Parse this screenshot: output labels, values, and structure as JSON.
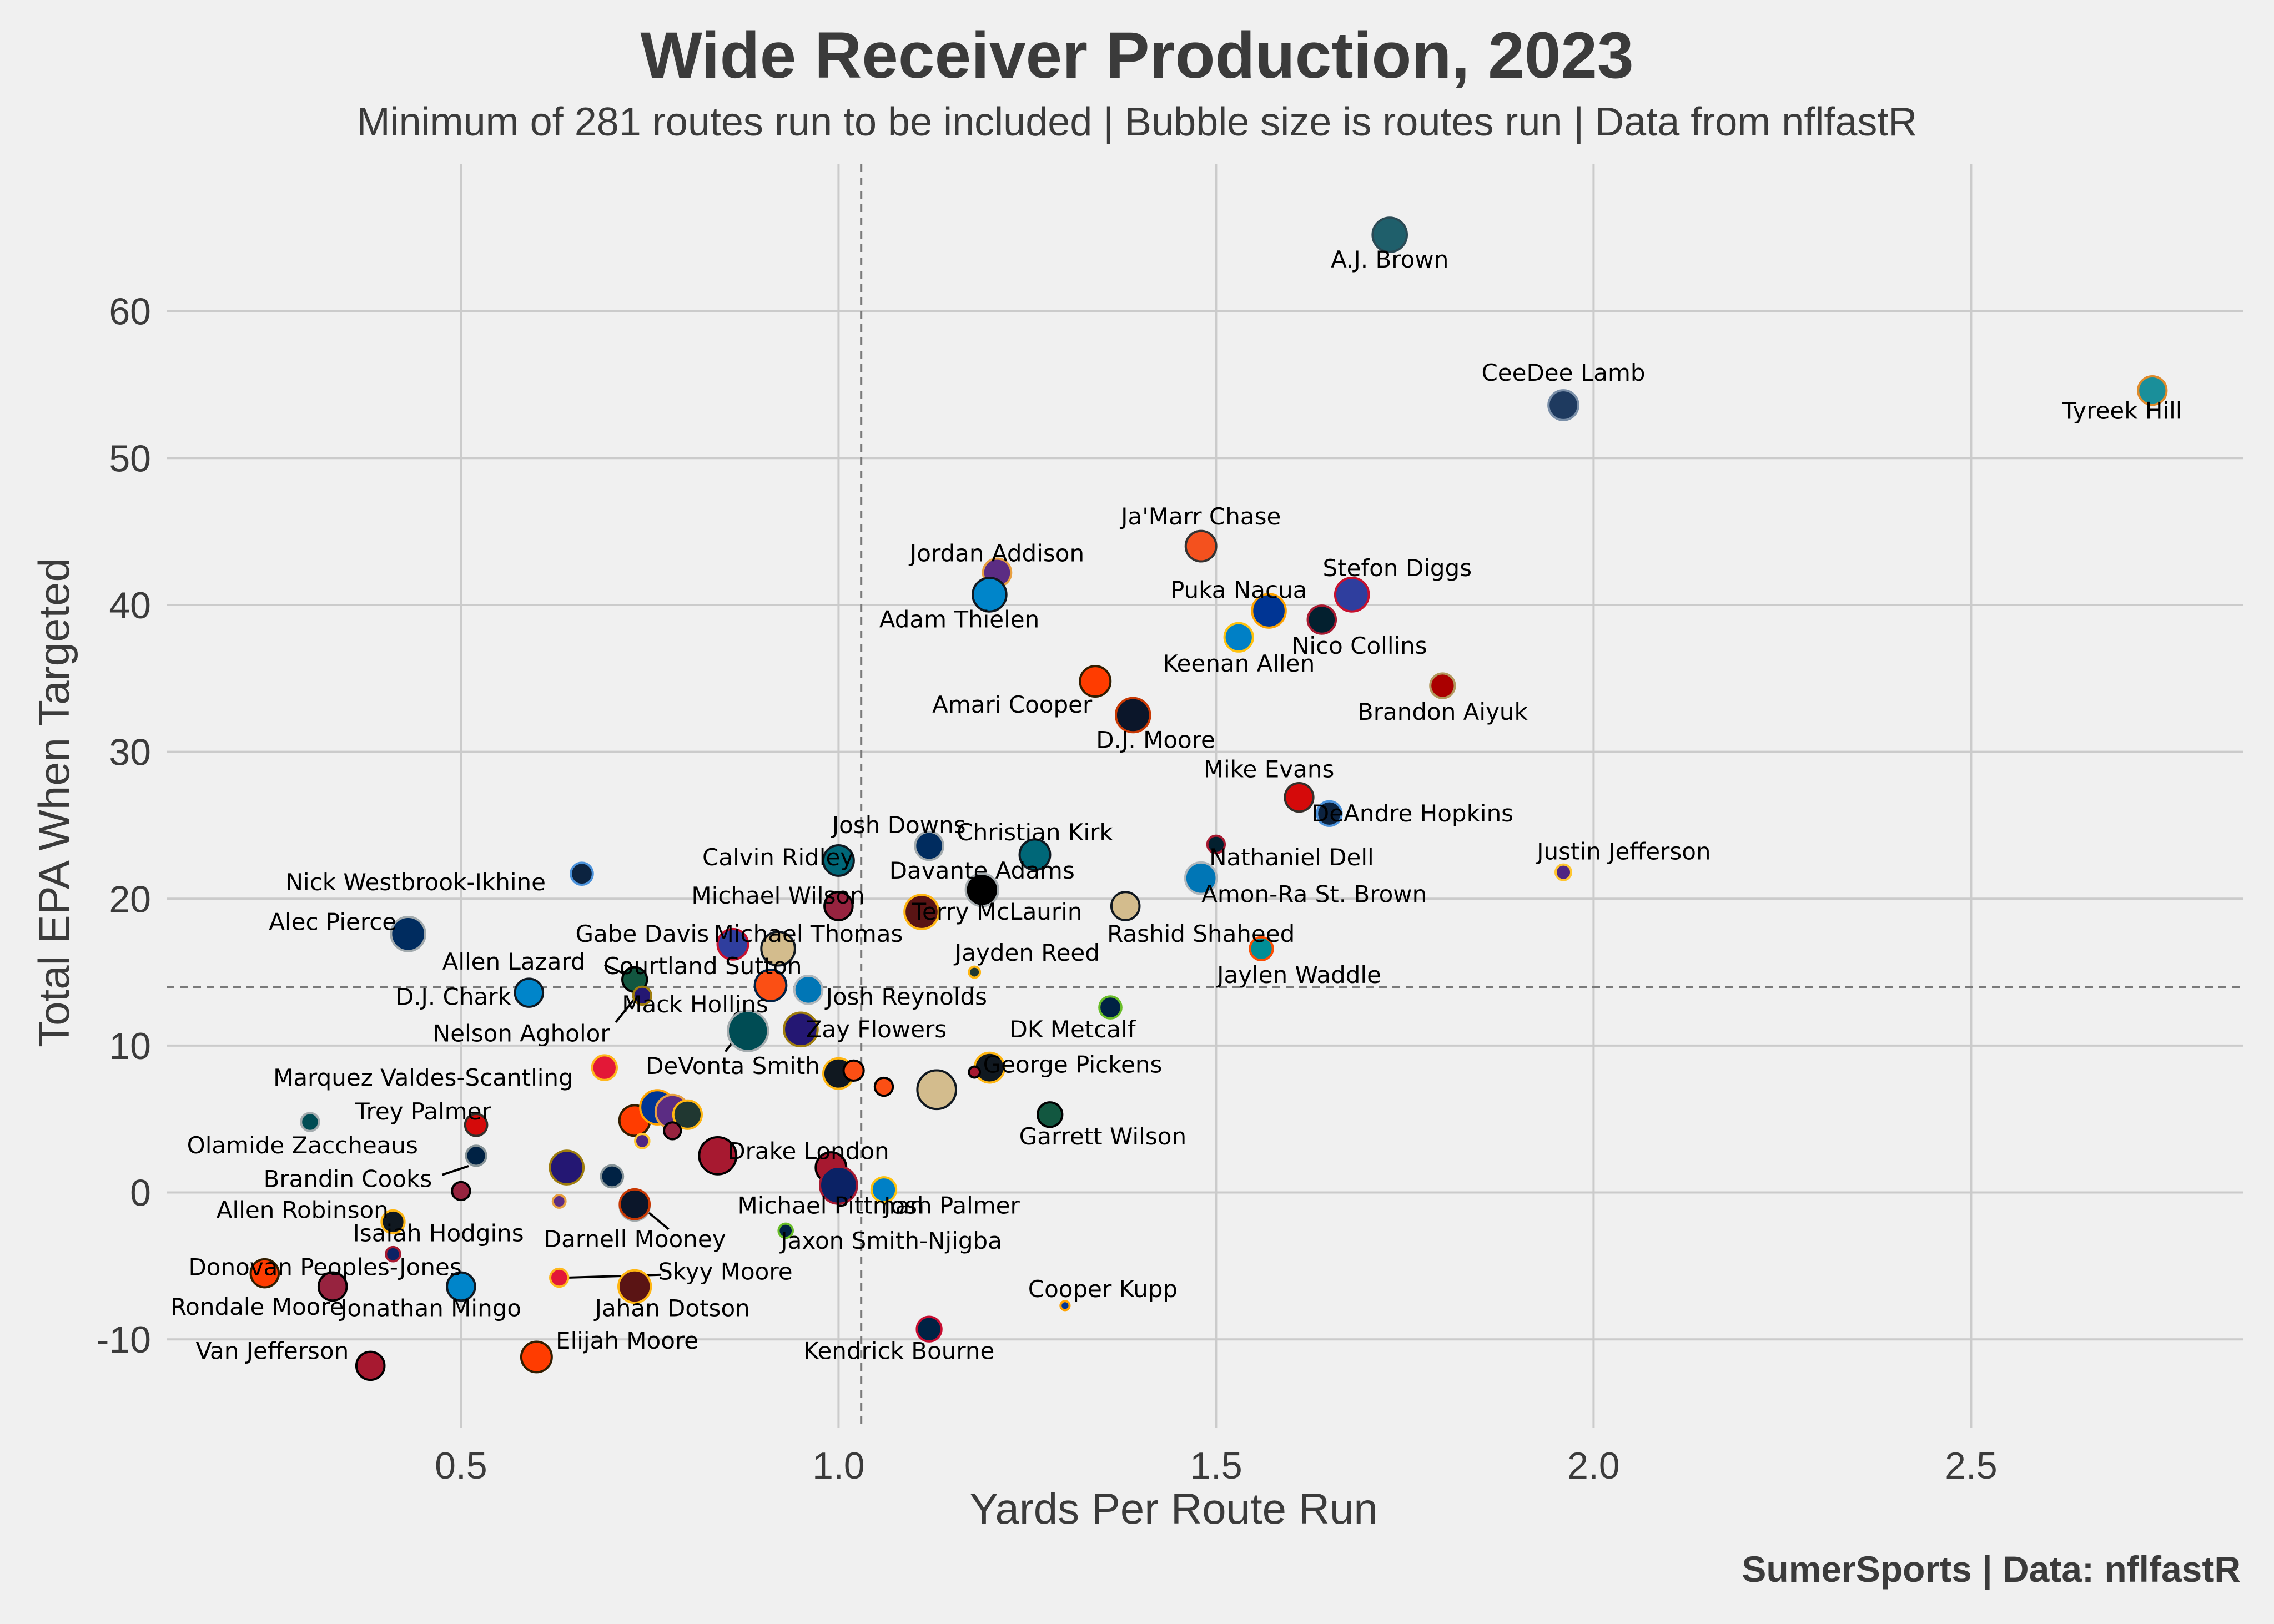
{
  "chart_data": {
    "type": "scatter",
    "title": "Wide Receiver Production, 2023",
    "subtitle": "Minimum of 281 routes run to be included | Bubble size is routes run | Data from nflfastR",
    "xlabel": "Yards Per Route Run",
    "ylabel": "Total EPA When Targeted",
    "credit": "SumerSports | Data: nflfastR",
    "xlim": [
      0.11,
      2.86
    ],
    "ylim": [
      -16,
      70
    ],
    "xticks": [
      0.5,
      1.0,
      1.5,
      2.0,
      2.5
    ],
    "xtick_labels": [
      "0.5",
      "1.0",
      "1.5",
      "2.0",
      "2.5"
    ],
    "yticks": [
      -10,
      0,
      10,
      20,
      30,
      40,
      50,
      60
    ],
    "ytick_labels": [
      "-10",
      "0",
      "10",
      "20",
      "30",
      "40",
      "50",
      "60"
    ],
    "reference_lines": {
      "x": 1.03,
      "y": 14.0
    },
    "grid": true,
    "size_note": "Bubble size is routes run",
    "points": [
      {
        "label": "A.J. Brown",
        "x": 1.73,
        "y": 65.2,
        "size": 580,
        "color": "#1f5f6b",
        "edge": "#2a4a55",
        "lx": 1.73,
        "ly": 63.5
      },
      {
        "label": "Tyreek Hill",
        "x": 2.74,
        "y": 54.6,
        "size": 400,
        "color": "#1a8f9a",
        "edge": "#e08a2a",
        "lx": 2.7,
        "ly": 53.2
      },
      {
        "label": "CeeDee Lamb",
        "x": 1.96,
        "y": 53.6,
        "size": 440,
        "color": "#1e3a5f",
        "edge": "#7a8fa8",
        "lx": 1.96,
        "ly": 55.8
      },
      {
        "label": "Ja'Marr Chase",
        "x": 1.48,
        "y": 44.0,
        "size": 460,
        "color": "#f4511e",
        "edge": "#333333",
        "lx": 1.48,
        "ly": 46.0
      },
      {
        "label": "Jordan Addison",
        "x": 1.21,
        "y": 42.2,
        "size": 390,
        "color": "#5b2c83",
        "edge": "#e8a040",
        "lx": 1.21,
        "ly": 43.5
      },
      {
        "label": "Adam Thielen",
        "x": 1.2,
        "y": 40.7,
        "size": 560,
        "color": "#0085ca",
        "edge": "#101820",
        "lx": 1.16,
        "ly": 39.0
      },
      {
        "label": "Stefon Diggs",
        "x": 1.68,
        "y": 40.7,
        "size": 560,
        "color": "#2f3e9e",
        "edge": "#c8102e",
        "lx": 1.74,
        "ly": 42.5
      },
      {
        "label": "Puka Nacua",
        "x": 1.57,
        "y": 39.6,
        "size": 560,
        "color": "#003594",
        "edge": "#ffa300",
        "lx": 1.53,
        "ly": 41.0
      },
      {
        "label": "Nico Collins",
        "x": 1.64,
        "y": 39.0,
        "size": 390,
        "color": "#03202f",
        "edge": "#a71930",
        "lx": 1.69,
        "ly": 37.2
      },
      {
        "label": "Keenan Allen",
        "x": 1.53,
        "y": 37.8,
        "size": 400,
        "color": "#0080c6",
        "edge": "#ffc20e",
        "lx": 1.53,
        "ly": 36.0
      },
      {
        "label": "Amari Cooper",
        "x": 1.34,
        "y": 34.8,
        "size": 460,
        "color": "#ff3c00",
        "edge": "#311d00",
        "lx": 1.23,
        "ly": 33.2
      },
      {
        "label": "Brandon Aiyuk",
        "x": 1.8,
        "y": 34.5,
        "size": 300,
        "color": "#aa0000",
        "edge": "#b3995d",
        "lx": 1.8,
        "ly": 32.7
      },
      {
        "label": "D.J. Moore",
        "x": 1.39,
        "y": 32.5,
        "size": 580,
        "color": "#0b162a",
        "edge": "#c83803",
        "lx": 1.42,
        "ly": 30.8
      },
      {
        "label": "Mike Evans",
        "x": 1.61,
        "y": 26.9,
        "size": 400,
        "color": "#d50a0a",
        "edge": "#34302b",
        "lx": 1.57,
        "ly": 28.8
      },
      {
        "label": "DeAndre Hopkins",
        "x": 1.65,
        "y": 25.8,
        "size": 300,
        "color": "#0c2340",
        "edge": "#4b92db",
        "lx": 1.76,
        "ly": 25.8
      },
      {
        "label": "Nathaniel Dell",
        "x": 1.5,
        "y": 23.7,
        "size": 150,
        "color": "#03202f",
        "edge": "#a71930",
        "lx": 1.6,
        "ly": 22.8
      },
      {
        "label": "Justin Jefferson",
        "x": 1.96,
        "y": 21.8,
        "size": 120,
        "color": "#4f2683",
        "edge": "#ffc62f",
        "lx": 2.04,
        "ly": 23.2
      },
      {
        "label": "Amon-Ra St. Brown",
        "x": 1.48,
        "y": 21.4,
        "size": 490,
        "color": "#0076b6",
        "edge": "#b0b7bc",
        "lx": 1.63,
        "ly": 20.3
      },
      {
        "label": "Rashid Shaheed",
        "x": 1.38,
        "y": 19.5,
        "size": 390,
        "color": "#d3bc8d",
        "edge": "#101820",
        "lx": 1.48,
        "ly": 17.6
      },
      {
        "label": "Jaylen Waddle",
        "x": 1.56,
        "y": 16.6,
        "size": 260,
        "color": "#008e97",
        "edge": "#fc4c02",
        "lx": 1.61,
        "ly": 14.8
      },
      {
        "label": "Christian Kirk",
        "x": 1.26,
        "y": 23.0,
        "size": 460,
        "color": "#006778",
        "edge": "#101820",
        "lx": 1.26,
        "ly": 24.5
      },
      {
        "label": "Josh Downs",
        "x": 1.12,
        "y": 23.6,
        "size": 390,
        "color": "#002c5f",
        "edge": "#a2aaad",
        "lx": 1.08,
        "ly": 25.0
      },
      {
        "label": "Calvin Ridley",
        "x": 1.0,
        "y": 22.6,
        "size": 460,
        "color": "#006778",
        "edge": "#101820",
        "lx": 0.92,
        "ly": 22.8
      },
      {
        "label": "Davante Adams",
        "x": 1.19,
        "y": 20.6,
        "size": 520,
        "color": "#000000",
        "edge": "#a5acaf",
        "lx": 1.19,
        "ly": 21.9
      },
      {
        "label": "Michael Wilson",
        "x": 1.0,
        "y": 19.5,
        "size": 390,
        "color": "#97233f",
        "edge": "#000000",
        "lx": 0.92,
        "ly": 20.2
      },
      {
        "label": "Terry McLaurin",
        "x": 1.11,
        "y": 19.1,
        "size": 580,
        "color": "#5a1414",
        "edge": "#ffb612",
        "lx": 1.21,
        "ly": 19.1
      },
      {
        "label": "Nick Westbrook-Ikhine",
        "x": 0.66,
        "y": 21.7,
        "size": 240,
        "color": "#0c2340",
        "edge": "#4b92db",
        "lx": 0.44,
        "ly": 21.1
      },
      {
        "label": "Alec Pierce",
        "x": 0.43,
        "y": 17.6,
        "size": 580,
        "color": "#002c5f",
        "edge": "#a2aaad",
        "lx": 0.33,
        "ly": 18.4
      },
      {
        "label": "Gabe Davis",
        "x": 0.86,
        "y": 16.9,
        "size": 460,
        "color": "#2f3e9e",
        "edge": "#c8102e",
        "lx": 0.74,
        "ly": 17.6
      },
      {
        "label": "Michael Thomas",
        "x": 0.92,
        "y": 16.6,
        "size": 560,
        "color": "#d3bc8d",
        "edge": "#101820",
        "lx": 0.96,
        "ly": 17.6
      },
      {
        "label": "Jayden Reed",
        "x": 1.18,
        "y": 15.0,
        "size": 60,
        "color": "#203731",
        "edge": "#ffb612",
        "lx": 1.25,
        "ly": 16.3
      },
      {
        "label": "Allen Lazard",
        "x": 0.73,
        "y": 14.5,
        "size": 300,
        "color": "#125740",
        "edge": "#000000",
        "lx": 0.57,
        "ly": 15.7
      },
      {
        "label": "Courtland Sutton",
        "x": 0.91,
        "y": 14.1,
        "size": 490,
        "color": "#fb4f14",
        "edge": "#002244",
        "lx": 0.82,
        "ly": 15.4
      },
      {
        "label": "D.J. Chark",
        "x": 0.59,
        "y": 13.6,
        "size": 390,
        "color": "#0085ca",
        "edge": "#101820",
        "lx": 0.49,
        "ly": 13.3
      },
      {
        "label": "Mack Hollins",
        "x": 0.87,
        "y": 11.8,
        "size": 100,
        "color": "#a71930",
        "edge": "#000000",
        "lx": 0.81,
        "ly": 12.8
      },
      {
        "label": "Josh Reynolds",
        "x": 0.96,
        "y": 13.8,
        "size": 390,
        "color": "#0076b6",
        "edge": "#b0b7bc",
        "lx": 1.09,
        "ly": 13.3
      },
      {
        "label": "Nelson Agholor",
        "x": 0.74,
        "y": 13.4,
        "size": 160,
        "color": "#241773",
        "edge": "#9e7c0c",
        "lx": 0.58,
        "ly": 10.8
      },
      {
        "label": "Zay Flowers",
        "x": 0.95,
        "y": 11.1,
        "size": 560,
        "color": "#241773",
        "edge": "#9e7c0c",
        "lx": 1.05,
        "ly": 11.1
      },
      {
        "label": "DeVonta Smith",
        "x": 0.88,
        "y": 11.0,
        "size": 800,
        "color": "#004c54",
        "edge": "#a5acaf",
        "lx": 0.86,
        "ly": 8.6
      },
      {
        "label": "DK Metcalf",
        "x": 1.36,
        "y": 12.6,
        "size": 240,
        "color": "#002244",
        "edge": "#69be28",
        "lx": 1.31,
        "ly": 11.1
      },
      {
        "label": "George Pickens",
        "x": 1.2,
        "y": 8.5,
        "size": 440,
        "color": "#101820",
        "edge": "#ffb612",
        "lx": 1.31,
        "ly": 8.7
      },
      {
        "label": "Marquez Valdes-Scantling",
        "x": 0.69,
        "y": 8.5,
        "size": 300,
        "color": "#e31837",
        "edge": "#ffb81c",
        "lx": 0.45,
        "ly": 7.8
      },
      {
        "label": null,
        "x": 1.0,
        "y": 8.1,
        "size": 460,
        "color": "#101820",
        "edge": "#ffb612"
      },
      {
        "label": null,
        "x": 1.02,
        "y": 8.3,
        "size": 200,
        "color": "#fb4f14",
        "edge": "#000000"
      },
      {
        "label": null,
        "x": 1.06,
        "y": 7.2,
        "size": 160,
        "color": "#fb4f14",
        "edge": "#000000"
      },
      {
        "label": null,
        "x": 1.13,
        "y": 7.0,
        "size": 740,
        "color": "#d3bc8d",
        "edge": "#101820"
      },
      {
        "label": null,
        "x": 1.18,
        "y": 8.2,
        "size": 60,
        "color": "#a71930",
        "edge": "#000000"
      },
      {
        "label": "Olamide Zaccheaus",
        "x": 0.3,
        "y": 4.8,
        "size": 160,
        "color": "#004c54",
        "edge": "#a5acaf",
        "lx": 0.29,
        "ly": 3.2
      },
      {
        "label": "Trey Palmer",
        "x": 0.52,
        "y": 4.6,
        "size": 240,
        "color": "#d50a0a",
        "edge": "#34302b",
        "lx": 0.45,
        "ly": 5.5
      },
      {
        "label": null,
        "x": 0.73,
        "y": 4.9,
        "size": 460,
        "color": "#ff3c00",
        "edge": "#311d00"
      },
      {
        "label": null,
        "x": 0.76,
        "y": 5.8,
        "size": 580,
        "color": "#003594",
        "edge": "#ffa300"
      },
      {
        "label": null,
        "x": 0.78,
        "y": 5.5,
        "size": 560,
        "color": "#5b2c83",
        "edge": "#e8a040"
      },
      {
        "label": null,
        "x": 0.8,
        "y": 5.3,
        "size": 400,
        "color": "#203731",
        "edge": "#ffb612"
      },
      {
        "label": null,
        "x": 0.74,
        "y": 3.5,
        "size": 100,
        "color": "#4f2683",
        "edge": "#ffc62f"
      },
      {
        "label": null,
        "x": 0.78,
        "y": 4.2,
        "size": 140,
        "color": "#97233f",
        "edge": "#000000"
      },
      {
        "label": "Garrett Wilson",
        "x": 1.28,
        "y": 5.3,
        "size": 300,
        "color": "#125740",
        "edge": "#000000",
        "lx": 1.35,
        "ly": 3.8
      },
      {
        "label": "Drake London",
        "x": 0.84,
        "y": 2.5,
        "size": 680,
        "color": "#a71930",
        "edge": "#000000",
        "lx": 0.96,
        "ly": 2.8
      },
      {
        "label": "Brandin Cooks",
        "x": 0.52,
        "y": 2.5,
        "size": 200,
        "color": "#002244",
        "edge": "#869397",
        "lx": 0.35,
        "ly": 0.9
      },
      {
        "label": null,
        "x": 0.64,
        "y": 1.7,
        "size": 560,
        "color": "#241773",
        "edge": "#9e7c0c"
      },
      {
        "label": null,
        "x": 0.7,
        "y": 1.1,
        "size": 240,
        "color": "#002244",
        "edge": "#869397"
      },
      {
        "label": null,
        "x": 0.99,
        "y": 1.7,
        "size": 460,
        "color": "#a71930",
        "edge": "#000000"
      },
      {
        "label": null,
        "x": 1.0,
        "y": 0.5,
        "size": 680,
        "color": "#0b2265",
        "edge": "#a71930"
      },
      {
        "label": "Josh Palmer",
        "x": 1.06,
        "y": 0.2,
        "size": 300,
        "color": "#0080c6",
        "edge": "#ffc20e",
        "lx": 1.15,
        "ly": -0.9
      },
      {
        "label": null,
        "x": 0.5,
        "y": 0.1,
        "size": 160,
        "color": "#97233f",
        "edge": "#000000"
      },
      {
        "label": null,
        "x": 0.63,
        "y": -0.6,
        "size": 80,
        "color": "#5b2c83",
        "edge": "#e8a040"
      },
      {
        "label": "Michael Pittman",
        "x": 0.73,
        "y": -0.9,
        "size": 440,
        "color": "#002c5f",
        "edge": "#a2aaad",
        "lx": 0.99,
        "ly": -0.9
      },
      {
        "label": "Allen Robinson",
        "x": 0.41,
        "y": -2.0,
        "size": 260,
        "color": "#101820",
        "edge": "#ffb612",
        "lx": 0.29,
        "ly": -1.2
      },
      {
        "label": "Isaiah Hodgins",
        "x": 0.41,
        "y": -4.2,
        "size": 100,
        "color": "#0b2265",
        "edge": "#a71930",
        "lx": 0.47,
        "ly": -2.8
      },
      {
        "label": "Darnell Mooney",
        "x": 0.73,
        "y": -0.8,
        "size": 440,
        "color": "#0b162a",
        "edge": "#c83803",
        "lx": 0.73,
        "ly": -3.2
      },
      {
        "label": "Jaxon Smith-Njigba",
        "x": 0.93,
        "y": -2.6,
        "size": 100,
        "color": "#002244",
        "edge": "#69be28",
        "lx": 1.07,
        "ly": -3.3
      },
      {
        "label": "Donovan Peoples-Jones",
        "x": 0.24,
        "y": -5.5,
        "size": 390,
        "color": "#ff3c00",
        "edge": "#311d00",
        "lx": 0.32,
        "ly": -5.1
      },
      {
        "label": "Rondale Moore",
        "x": 0.33,
        "y": -6.4,
        "size": 390,
        "color": "#97233f",
        "edge": "#000000",
        "lx": 0.23,
        "ly": -7.8
      },
      {
        "label": "Jonathan Mingo",
        "x": 0.5,
        "y": -6.4,
        "size": 390,
        "color": "#0085ca",
        "edge": "#101820",
        "lx": 0.46,
        "ly": -7.9
      },
      {
        "label": "Skyy Moore",
        "x": 0.63,
        "y": -5.8,
        "size": 160,
        "color": "#e31837",
        "edge": "#ffb81c",
        "lx": 0.85,
        "ly": -5.4
      },
      {
        "label": "Jahan Dotson",
        "x": 0.73,
        "y": -6.4,
        "size": 520,
        "color": "#5a1414",
        "edge": "#ffb612",
        "lx": 0.78,
        "ly": -7.9
      },
      {
        "label": "Cooper Kupp",
        "x": 1.3,
        "y": -7.7,
        "size": 40,
        "color": "#003594",
        "edge": "#ffa300",
        "lx": 1.35,
        "ly": -6.6
      },
      {
        "label": "Kendrick Bourne",
        "x": 1.12,
        "y": -9.3,
        "size": 300,
        "color": "#002244",
        "edge": "#c60c30",
        "lx": 1.08,
        "ly": -10.8
      },
      {
        "label": "Van Jefferson",
        "x": 0.38,
        "y": -11.8,
        "size": 390,
        "color": "#a71930",
        "edge": "#000000",
        "lx": 0.25,
        "ly": -10.8
      },
      {
        "label": "Elijah Moore",
        "x": 0.6,
        "y": -11.2,
        "size": 460,
        "color": "#ff3c00",
        "edge": "#311d00",
        "lx": 0.72,
        "ly": -10.1
      }
    ],
    "leader_lines": [
      {
        "from": [
          0.51,
          1.8
        ],
        "to": [
          0.475,
          1.2
        ]
      },
      {
        "from": [
          0.69,
          15.5
        ],
        "to": [
          0.725,
          14.7
        ]
      },
      {
        "from": [
          0.73,
          13.2
        ],
        "to": [
          0.705,
          11.6
        ]
      },
      {
        "from": [
          0.87,
          10.9
        ],
        "to": [
          0.85,
          9.6
        ]
      },
      {
        "from": [
          0.74,
          -1.0
        ],
        "to": [
          0.775,
          -2.5
        ]
      },
      {
        "from": [
          0.64,
          -5.8
        ],
        "to": [
          0.765,
          -5.6
        ]
      }
    ]
  }
}
